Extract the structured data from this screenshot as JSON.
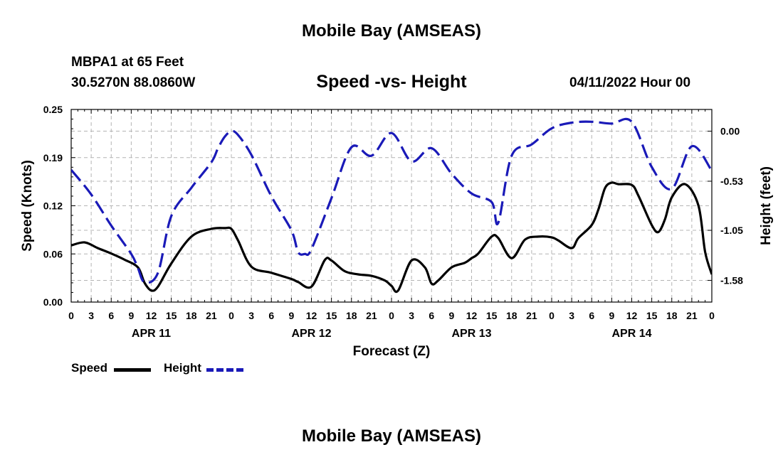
{
  "page_title": "Mobile Bay (AMSEAS)",
  "footer_title": "Mobile Bay (AMSEAS)",
  "station": "MBPA1 at 65 Feet",
  "coords": "30.5270N  88.0860W",
  "subtitle": "Speed -vs- Height",
  "datetime": "04/11/2022 Hour 00",
  "colors": {
    "speed": "#000000",
    "height": "#1a1ab8",
    "grid": "#b4b4b4"
  },
  "chart_data": {
    "type": "line",
    "title": "Speed -vs- Height",
    "xlabel": "Forecast (Z)",
    "ylabel": "Speed (Knots)",
    "y2label": "Height (feet)",
    "xlim": [
      0,
      96
    ],
    "ylim": [
      0,
      0.25
    ],
    "y2lim": [
      -1.81,
      0.23
    ],
    "x_ticks": [
      0,
      3,
      6,
      9,
      12,
      15,
      18,
      21,
      24,
      27,
      30,
      33,
      36,
      39,
      42,
      45,
      48,
      51,
      54,
      57,
      60,
      63,
      66,
      69,
      72,
      75,
      78,
      81,
      84,
      87,
      90,
      93,
      96
    ],
    "x_tick_labels": [
      "0",
      "3",
      "6",
      "9",
      "12",
      "15",
      "18",
      "21",
      "0",
      "3",
      "6",
      "9",
      "12",
      "15",
      "18",
      "21",
      "0",
      "3",
      "6",
      "9",
      "12",
      "15",
      "18",
      "21",
      "0",
      "3",
      "6",
      "9",
      "12",
      "15",
      "18",
      "21",
      "0"
    ],
    "day_labels": [
      {
        "label": "APR 11",
        "x": 12
      },
      {
        "label": "APR 12",
        "x": 36
      },
      {
        "label": "APR 13",
        "x": 60
      },
      {
        "label": "APR 14",
        "x": 84
      }
    ],
    "y_ticks": [
      "0.00",
      "0.06",
      "0.12",
      "0.19",
      "0.25"
    ],
    "y_tick_values": [
      0,
      0.0625,
      0.125,
      0.1875,
      0.25
    ],
    "y2_ticks": [
      "-1.58",
      "-1.05",
      "-0.53",
      "0.00"
    ],
    "y2_tick_values": [
      -1.58,
      -1.05,
      -0.53,
      0.0
    ],
    "grid": true,
    "legend_position": "bottom-left",
    "series": [
      {
        "name": "Speed",
        "axis": "left",
        "style": "solid",
        "x": [
          0,
          2,
          4,
          6,
          8,
          10,
          11,
          12,
          13,
          15,
          18,
          21,
          23,
          24,
          25,
          27,
          30,
          33,
          34,
          36,
          38,
          39,
          41,
          43,
          45,
          47,
          48,
          49,
          51,
          53,
          54,
          55,
          57,
          59,
          60,
          61,
          63,
          64,
          66,
          68,
          70,
          72,
          73,
          75,
          76,
          78,
          79,
          80,
          81,
          82,
          84,
          85,
          87,
          88,
          89,
          90,
          92,
          94,
          95,
          96
        ],
        "y": [
          0.0735,
          0.0775,
          0.07,
          0.063,
          0.055,
          0.045,
          0.025,
          0.015,
          0.02,
          0.05,
          0.085,
          0.095,
          0.096,
          0.095,
          0.08,
          0.046,
          0.038,
          0.03,
          0.026,
          0.02,
          0.0545,
          0.054,
          0.04,
          0.036,
          0.034,
          0.028,
          0.021,
          0.015,
          0.054,
          0.045,
          0.024,
          0.028,
          0.045,
          0.051,
          0.057,
          0.063,
          0.085,
          0.083,
          0.057,
          0.081,
          0.085,
          0.084,
          0.08,
          0.07,
          0.083,
          0.1,
          0.12,
          0.148,
          0.155,
          0.153,
          0.152,
          0.138,
          0.1,
          0.091,
          0.108,
          0.136,
          0.153,
          0.125,
          0.065,
          0.036
        ]
      },
      {
        "name": "Height",
        "axis": "right",
        "style": "dashed",
        "x": [
          0,
          3,
          6,
          9,
          10,
          11,
          13,
          15,
          18,
          21,
          22,
          23,
          24,
          25,
          27,
          30,
          33,
          34,
          35,
          36,
          39,
          42,
          45,
          48,
          51,
          54,
          57,
          60,
          63,
          64,
          66,
          69,
          72,
          75,
          78,
          81,
          84,
          87,
          90,
          93,
          96
        ],
        "y": [
          -0.41,
          -0.67,
          -1.0,
          -1.3,
          -1.45,
          -1.6,
          -1.5,
          -0.9,
          -0.6,
          -0.33,
          -0.18,
          -0.06,
          0.0,
          -0.04,
          -0.25,
          -0.69,
          -1.05,
          -1.28,
          -1.3,
          -1.25,
          -0.71,
          -0.17,
          -0.26,
          -0.02,
          -0.32,
          -0.18,
          -0.45,
          -0.66,
          -0.75,
          -0.97,
          -0.26,
          -0.14,
          0.03,
          0.09,
          0.1,
          0.08,
          0.1,
          -0.38,
          -0.61,
          -0.16,
          -0.42
        ]
      }
    ]
  }
}
